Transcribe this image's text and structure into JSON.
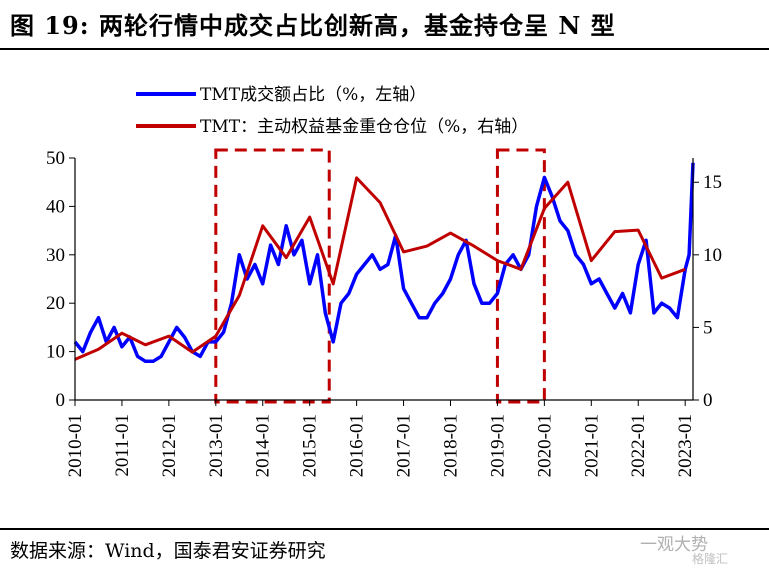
{
  "title": "图 19: 两轮行情中成交占比创新高，基金持仓呈 N 型",
  "source": "数据来源：Wind，国泰君安证券研究",
  "watermark": {
    "main": "一观大势",
    "sub": "格隆汇"
  },
  "colors": {
    "turnover": "#0000ff",
    "fund": "#c00000",
    "box": "#c00000"
  },
  "chart_data": {
    "type": "line",
    "x_axis": {
      "ticks": [
        "2010-01",
        "2011-01",
        "2012-01",
        "2013-01",
        "2014-01",
        "2015-01",
        "2016-01",
        "2017-01",
        "2018-01",
        "2019-01",
        "2020-01",
        "2021-01",
        "2022-01",
        "2023-01"
      ],
      "range": [
        "2010-01",
        "2023-03"
      ]
    },
    "y_left": {
      "ticks": [
        0,
        10,
        20,
        30,
        40,
        50
      ],
      "range": [
        0,
        50
      ]
    },
    "y_right": {
      "ticks": [
        0,
        5,
        10,
        15
      ],
      "range": [
        0,
        16.67
      ]
    },
    "legend_position": "top-left",
    "highlight_boxes": [
      {
        "start": "2013-01",
        "end": "2015-06"
      },
      {
        "start": "2019-01",
        "end": "2020-01"
      }
    ],
    "series": [
      {
        "name": "TMT成交额占比（%，左轴）",
        "axis": "left",
        "color": "#0000ff",
        "x": [
          "2010-01",
          "2010-03",
          "2010-05",
          "2010-07",
          "2010-09",
          "2010-11",
          "2011-01",
          "2011-03",
          "2011-05",
          "2011-07",
          "2011-09",
          "2011-11",
          "2012-01",
          "2012-03",
          "2012-05",
          "2012-07",
          "2012-09",
          "2012-11",
          "2013-01",
          "2013-03",
          "2013-05",
          "2013-07",
          "2013-09",
          "2013-11",
          "2014-01",
          "2014-03",
          "2014-05",
          "2014-07",
          "2014-09",
          "2014-11",
          "2015-01",
          "2015-03",
          "2015-05",
          "2015-07",
          "2015-09",
          "2015-11",
          "2016-01",
          "2016-03",
          "2016-05",
          "2016-07",
          "2016-09",
          "2016-11",
          "2017-01",
          "2017-03",
          "2017-05",
          "2017-07",
          "2017-09",
          "2017-11",
          "2018-01",
          "2018-03",
          "2018-05",
          "2018-07",
          "2018-09",
          "2018-11",
          "2019-01",
          "2019-03",
          "2019-05",
          "2019-07",
          "2019-09",
          "2019-11",
          "2020-01",
          "2020-03",
          "2020-05",
          "2020-07",
          "2020-09",
          "2020-11",
          "2021-01",
          "2021-03",
          "2021-05",
          "2021-07",
          "2021-09",
          "2021-11",
          "2022-01",
          "2022-03",
          "2022-05",
          "2022-07",
          "2022-09",
          "2022-11",
          "2023-01",
          "2023-02",
          "2023-03"
        ],
        "values": [
          12,
          10,
          14,
          17,
          12,
          15,
          11,
          13,
          9,
          8,
          8,
          9,
          12,
          15,
          13,
          10,
          9,
          12,
          12,
          14,
          20,
          30,
          25,
          28,
          24,
          32,
          28,
          36,
          30,
          33,
          24,
          30,
          18,
          12,
          20,
          22,
          26,
          28,
          30,
          27,
          28,
          34,
          23,
          20,
          17,
          17,
          20,
          22,
          25,
          30,
          33,
          24,
          20,
          20,
          22,
          28,
          30,
          27,
          30,
          40,
          46,
          42,
          37,
          35,
          30,
          28,
          24,
          25,
          22,
          19,
          22,
          18,
          28,
          33,
          18,
          20,
          19,
          17,
          27,
          30,
          49
        ]
      },
      {
        "name": "TMT：主动权益基金重仓仓位（%，右轴）",
        "axis": "right",
        "color": "#c00000",
        "x": [
          "2010-01",
          "2010-07",
          "2011-01",
          "2011-07",
          "2012-01",
          "2012-07",
          "2013-01",
          "2013-07",
          "2014-01",
          "2014-07",
          "2015-01",
          "2015-07",
          "2016-01",
          "2016-07",
          "2017-01",
          "2017-07",
          "2018-01",
          "2018-07",
          "2019-01",
          "2019-07",
          "2020-01",
          "2020-07",
          "2021-01",
          "2021-07",
          "2022-01",
          "2022-07",
          "2023-01"
        ],
        "values": [
          2.8,
          3.5,
          4.6,
          3.8,
          4.4,
          3.3,
          4.4,
          7.2,
          12.0,
          9.8,
          12.6,
          8.0,
          15.3,
          13.6,
          10.2,
          10.6,
          11.5,
          10.6,
          9.6,
          9.0,
          13.2,
          15.0,
          9.6,
          11.6,
          11.7,
          8.4,
          9.0
        ]
      }
    ]
  }
}
